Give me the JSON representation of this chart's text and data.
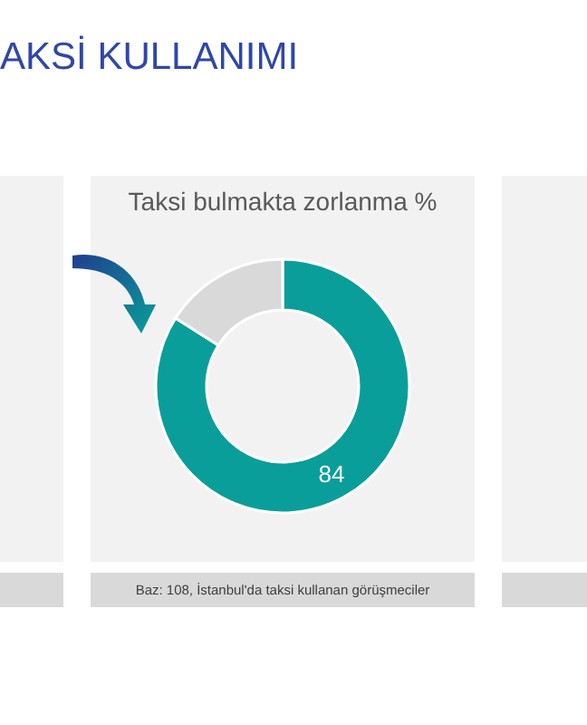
{
  "chart_data": {
    "type": "donut",
    "title": "Taksi bulmakta zorlanma %",
    "categories": [
      null,
      null
    ],
    "values": [
      84,
      16
    ],
    "colors": [
      "#0a9e9a",
      "#d9d9d9"
    ],
    "value_labels": [
      "84",
      null
    ],
    "annotations": [
      "AKSİ KULLANIMI",
      "Baz: 108, İstanbul'da taksi kullanan görüşmeciler"
    ]
  }
}
